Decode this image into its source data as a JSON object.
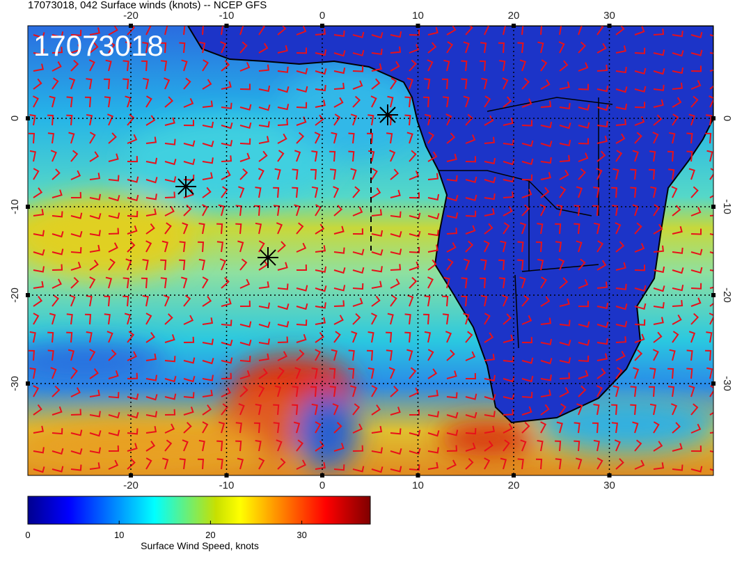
{
  "title": "17073018, 042 Surface winds (knots) -- NCEP GFS",
  "map": {
    "stamp": "17073018",
    "lon_ticks": [
      -20,
      -10,
      0,
      10,
      20,
      30
    ],
    "lat_ticks": [
      0,
      -10,
      -20,
      -30
    ]
  },
  "colorbar": {
    "range": [
      0,
      37.5
    ],
    "ticks": [
      0,
      10,
      20,
      30
    ],
    "label": "Surface Wind Speed, knots"
  }
}
